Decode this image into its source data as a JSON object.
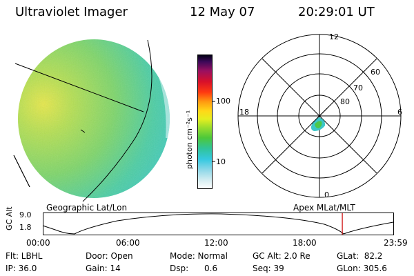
{
  "header": {
    "title": "Ultraviolet Imager",
    "date": "12 May 07",
    "time": "20:29:01 UT"
  },
  "colorbar": {
    "unit_label": "photon cm⁻²s⁻¹",
    "tick_labels": [
      "100",
      "10"
    ]
  },
  "polar_plot": {
    "hour_labels": [
      "12",
      "18",
      "6",
      "0"
    ],
    "lat_labels": [
      "60",
      "70",
      "80"
    ]
  },
  "coord_labels": {
    "left": "Geographic Lat/Lon",
    "right": "Apex MLat/MLT"
  },
  "altitude_plot": {
    "axis_label": "GC Alt",
    "ymax": "9.0",
    "ymin": "1.8",
    "time_labels": [
      "00:00",
      "06:00",
      "12:00",
      "18:00",
      "23:59"
    ],
    "marker_color": "#cc0000",
    "marker_time_fraction": 0.8535
  },
  "status": {
    "col1": [
      "Flt: LBHL",
      "IP: 36.0"
    ],
    "col2": [
      "Door: Open",
      "Gain: 14"
    ],
    "col3": [
      "Mode: Normal",
      "Dsp:      0.6"
    ],
    "col4": [
      "GC Alt: 2.0 Re",
      "Seq: 39"
    ],
    "col5": [
      "GLat:  82.2",
      "GLon: 305.6"
    ]
  }
}
